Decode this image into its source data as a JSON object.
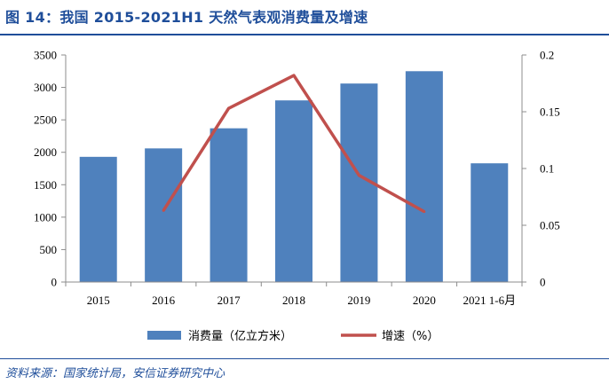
{
  "header": {
    "title": "图 14：我国 2015-2021H1 天然气表观消费量及增速"
  },
  "footer": {
    "source": "资料来源：国家统计局，安信证券研究中心"
  },
  "chart_data": {
    "type": "bar",
    "title": "我国 2015-2021H1 天然气表观消费量及增速",
    "categories": [
      "2015",
      "2016",
      "2017",
      "2018",
      "2019",
      "2020",
      "2021 1-6月"
    ],
    "series": [
      {
        "name": "消费量（亿立方米）",
        "type": "bar",
        "axis": "left",
        "color": "#4f81bd",
        "values": [
          1930,
          2060,
          2370,
          2800,
          3060,
          3250,
          1830
        ]
      },
      {
        "name": "增速（%）",
        "type": "line",
        "axis": "right",
        "color": "#c0504d",
        "values": [
          null,
          0.063,
          0.153,
          0.182,
          0.094,
          0.062,
          null
        ]
      }
    ],
    "y_left": {
      "min": 0,
      "max": 3500,
      "ticks": [
        "0",
        "500",
        "1000",
        "1500",
        "2000",
        "2500",
        "3000",
        "3500"
      ]
    },
    "y_right": {
      "min": 0,
      "max": 0.2,
      "ticks": [
        "0",
        "0.05",
        "0.1",
        "0.15",
        "0.2"
      ]
    },
    "legend_position": "bottom",
    "grid": false
  }
}
